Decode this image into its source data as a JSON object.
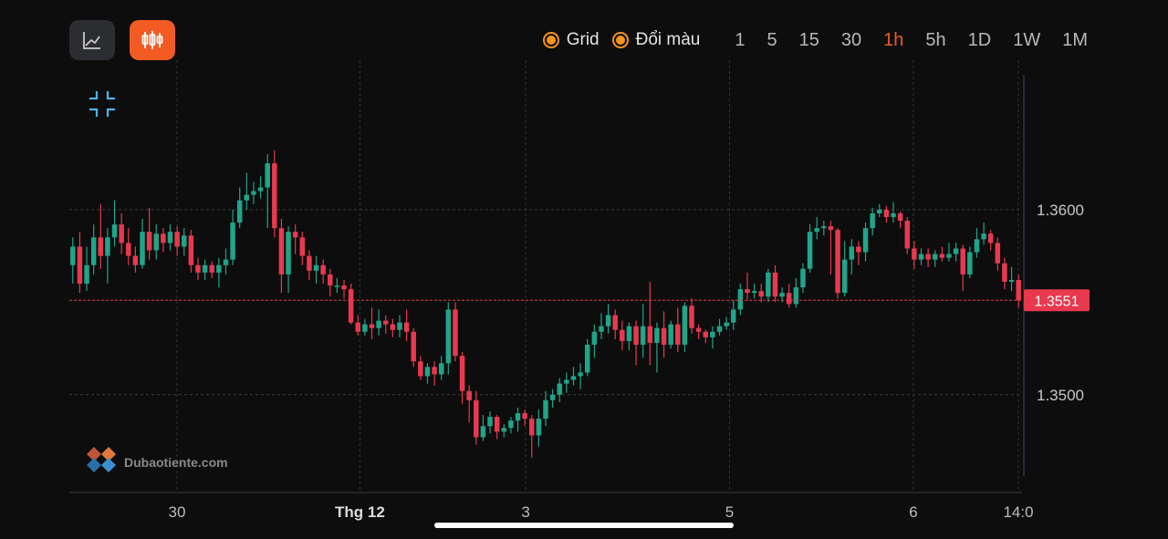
{
  "toolbar": {
    "chart_type_buttons": [
      {
        "icon": "line-chart-icon",
        "active": false
      },
      {
        "icon": "candlestick-icon",
        "active": true
      }
    ],
    "grid_label": "Grid",
    "color_label": "Đổi màu",
    "timeframes": [
      "1",
      "5",
      "15",
      "30",
      "1h",
      "5h",
      "1D",
      "1W",
      "1M"
    ],
    "active_timeframe": "1h",
    "accent_color": "#f25b22",
    "toggle_color": "#f7931e"
  },
  "watermark": {
    "text": "Dubaotiente.com"
  },
  "chart_data": {
    "type": "candlestick",
    "up_color": "#1fa58a",
    "down_color": "#e8394f",
    "grid": true,
    "ylim": [
      1.3457,
      1.3664
    ],
    "y_ticks": [
      "1.3600",
      "1.3500"
    ],
    "x_ticks": [
      "30",
      "Thg 12",
      "3",
      "5",
      "6",
      "14:0"
    ],
    "last_price": "1.3551",
    "candles": [
      [
        1.357,
        1.358,
        1.356,
        1.3585
      ],
      [
        1.358,
        1.356,
        1.3555,
        1.3588
      ],
      [
        1.356,
        1.357,
        1.3556,
        1.358
      ],
      [
        1.357,
        1.3585,
        1.3565,
        1.3592
      ],
      [
        1.3585,
        1.3575,
        1.3568,
        1.3603
      ],
      [
        1.3575,
        1.3585,
        1.356,
        1.359
      ],
      [
        1.3585,
        1.3592,
        1.358,
        1.3605
      ],
      [
        1.3592,
        1.3582,
        1.3576,
        1.3598
      ],
      [
        1.3582,
        1.3575,
        1.357,
        1.359
      ],
      [
        1.3575,
        1.357,
        1.3566,
        1.358
      ],
      [
        1.357,
        1.3588,
        1.3568,
        1.3595
      ],
      [
        1.3588,
        1.3578,
        1.3573,
        1.3601
      ],
      [
        1.3578,
        1.3587,
        1.3573,
        1.3592
      ],
      [
        1.3587,
        1.3582,
        1.3577,
        1.359
      ],
      [
        1.3582,
        1.3588,
        1.3578,
        1.3592
      ],
      [
        1.3588,
        1.358,
        1.3575,
        1.3591
      ],
      [
        1.358,
        1.3586,
        1.3575,
        1.359
      ],
      [
        1.3586,
        1.357,
        1.3566,
        1.3589
      ],
      [
        1.357,
        1.3566,
        1.3562,
        1.3574
      ],
      [
        1.3566,
        1.357,
        1.3562,
        1.3573
      ],
      [
        1.357,
        1.3566,
        1.3563,
        1.3572
      ],
      [
        1.3566,
        1.357,
        1.3558,
        1.3574
      ],
      [
        1.357,
        1.3573,
        1.3565,
        1.3579
      ],
      [
        1.3573,
        1.3593,
        1.357,
        1.36
      ],
      [
        1.3593,
        1.3605,
        1.359,
        1.3612
      ],
      [
        1.3605,
        1.3608,
        1.36,
        1.362
      ],
      [
        1.3608,
        1.361,
        1.3603,
        1.3615
      ],
      [
        1.361,
        1.3612,
        1.3606,
        1.3618
      ],
      [
        1.3612,
        1.3625,
        1.359,
        1.363
      ],
      [
        1.3625,
        1.359,
        1.3585,
        1.3632
      ],
      [
        1.359,
        1.3565,
        1.3555,
        1.3595
      ],
      [
        1.3565,
        1.3588,
        1.3555,
        1.3591
      ],
      [
        1.3588,
        1.3585,
        1.3576,
        1.3592
      ],
      [
        1.3585,
        1.3575,
        1.357,
        1.3588
      ],
      [
        1.3575,
        1.3567,
        1.3562,
        1.3578
      ],
      [
        1.3567,
        1.357,
        1.356,
        1.3575
      ],
      [
        1.357,
        1.3565,
        1.356,
        1.3573
      ],
      [
        1.3565,
        1.3559,
        1.3553,
        1.3568
      ],
      [
        1.3559,
        1.3559,
        1.3555,
        1.3563
      ],
      [
        1.3559,
        1.3557,
        1.3552,
        1.3562
      ],
      [
        1.3557,
        1.3539,
        1.3538,
        1.356
      ],
      [
        1.3539,
        1.3534,
        1.3532,
        1.3543
      ],
      [
        1.3534,
        1.3538,
        1.3532,
        1.3541
      ],
      [
        1.3538,
        1.3536,
        1.353,
        1.3547
      ],
      [
        1.3536,
        1.354,
        1.3532,
        1.3546
      ],
      [
        1.354,
        1.3538,
        1.3533,
        1.3543
      ],
      [
        1.3538,
        1.3535,
        1.3531,
        1.3541
      ],
      [
        1.3535,
        1.3539,
        1.3531,
        1.3543
      ],
      [
        1.3539,
        1.3534,
        1.3529,
        1.3546
      ],
      [
        1.3534,
        1.3518,
        1.3515,
        1.3536
      ],
      [
        1.3518,
        1.351,
        1.3508,
        1.3521
      ],
      [
        1.351,
        1.3515,
        1.3506,
        1.3517
      ],
      [
        1.3515,
        1.3511,
        1.3505,
        1.3518
      ],
      [
        1.3511,
        1.3517,
        1.3508,
        1.3521
      ],
      [
        1.3517,
        1.3546,
        1.3511,
        1.355
      ],
      [
        1.3546,
        1.3521,
        1.3518,
        1.355
      ],
      [
        1.3521,
        1.3502,
        1.3495,
        1.3523
      ],
      [
        1.3502,
        1.3497,
        1.3485,
        1.3505
      ],
      [
        1.3497,
        1.3477,
        1.3473,
        1.3502
      ],
      [
        1.3477,
        1.3483,
        1.3475,
        1.3489
      ],
      [
        1.3483,
        1.3488,
        1.3479,
        1.3491
      ],
      [
        1.3488,
        1.348,
        1.3476,
        1.3489
      ],
      [
        1.348,
        1.3482,
        1.3477,
        1.3484
      ],
      [
        1.3482,
        1.3486,
        1.3479,
        1.3488
      ],
      [
        1.3486,
        1.349,
        1.348,
        1.3493
      ],
      [
        1.349,
        1.3487,
        1.3483,
        1.3492
      ],
      [
        1.3487,
        1.3478,
        1.3466,
        1.3489
      ],
      [
        1.3478,
        1.3487,
        1.3472,
        1.3492
      ],
      [
        1.3487,
        1.3497,
        1.3483,
        1.3502
      ],
      [
        1.3497,
        1.35,
        1.3493,
        1.3503
      ],
      [
        1.35,
        1.3506,
        1.3496,
        1.3509
      ],
      [
        1.3506,
        1.3508,
        1.3501,
        1.3512
      ],
      [
        1.3508,
        1.351,
        1.3505,
        1.3515
      ],
      [
        1.351,
        1.3512,
        1.3503,
        1.3517
      ],
      [
        1.3512,
        1.3527,
        1.351,
        1.353
      ],
      [
        1.3527,
        1.3534,
        1.352,
        1.3538
      ],
      [
        1.3534,
        1.3537,
        1.353,
        1.3544
      ],
      [
        1.3537,
        1.3543,
        1.3533,
        1.3549
      ],
      [
        1.3543,
        1.3535,
        1.353,
        1.3546
      ],
      [
        1.3535,
        1.3529,
        1.3524,
        1.354
      ],
      [
        1.3529,
        1.3537,
        1.3524,
        1.3539
      ],
      [
        1.3537,
        1.3527,
        1.3516,
        1.354
      ],
      [
        1.3527,
        1.3537,
        1.352,
        1.3549
      ],
      [
        1.3537,
        1.3528,
        1.3516,
        1.3561
      ],
      [
        1.3528,
        1.3536,
        1.3512,
        1.3539
      ],
      [
        1.3536,
        1.3527,
        1.352,
        1.3545
      ],
      [
        1.3527,
        1.3538,
        1.3525,
        1.354
      ],
      [
        1.3538,
        1.3527,
        1.3523,
        1.3547
      ],
      [
        1.3527,
        1.3548,
        1.3523,
        1.355
      ],
      [
        1.3548,
        1.3536,
        1.3533,
        1.3552
      ],
      [
        1.3536,
        1.3534,
        1.353,
        1.3538
      ],
      [
        1.3534,
        1.3531,
        1.3528,
        1.3535
      ],
      [
        1.3531,
        1.3534,
        1.3525,
        1.3537
      ],
      [
        1.3534,
        1.3537,
        1.3532,
        1.3541
      ],
      [
        1.3537,
        1.3539,
        1.3535,
        1.3542
      ],
      [
        1.3539,
        1.3546,
        1.3535,
        1.3551
      ],
      [
        1.3546,
        1.3557,
        1.3543,
        1.356
      ],
      [
        1.3557,
        1.3555,
        1.3551,
        1.3566
      ],
      [
        1.3555,
        1.3556,
        1.3552,
        1.356
      ],
      [
        1.3556,
        1.3553,
        1.355,
        1.356
      ],
      [
        1.3553,
        1.3566,
        1.355,
        1.3568
      ],
      [
        1.3566,
        1.3553,
        1.355,
        1.357
      ],
      [
        1.3553,
        1.3555,
        1.355,
        1.3558
      ],
      [
        1.3555,
        1.3549,
        1.3547,
        1.356
      ],
      [
        1.3549,
        1.3558,
        1.3547,
        1.3563
      ],
      [
        1.3558,
        1.3568,
        1.3555,
        1.3571
      ],
      [
        1.3568,
        1.3588,
        1.3566,
        1.3592
      ],
      [
        1.3588,
        1.359,
        1.3584,
        1.3596
      ],
      [
        1.359,
        1.3591,
        1.3586,
        1.3594
      ],
      [
        1.3591,
        1.3589,
        1.3565,
        1.3594
      ],
      [
        1.3589,
        1.3555,
        1.3552,
        1.359
      ],
      [
        1.3555,
        1.3573,
        1.3553,
        1.3583
      ],
      [
        1.3573,
        1.358,
        1.3565,
        1.3584
      ],
      [
        1.358,
        1.3577,
        1.357,
        1.3583
      ],
      [
        1.3577,
        1.359,
        1.3572,
        1.3593
      ],
      [
        1.359,
        1.3598,
        1.3586,
        1.3601
      ],
      [
        1.3598,
        1.36,
        1.3596,
        1.3603
      ],
      [
        1.36,
        1.3596,
        1.3593,
        1.3602
      ],
      [
        1.3596,
        1.3598,
        1.3593,
        1.3604
      ],
      [
        1.3598,
        1.3594,
        1.359,
        1.3599
      ],
      [
        1.3594,
        1.3579,
        1.3576,
        1.3596
      ],
      [
        1.3579,
        1.3573,
        1.3568,
        1.3583
      ],
      [
        1.3573,
        1.3576,
        1.357,
        1.3579
      ],
      [
        1.3576,
        1.3573,
        1.3569,
        1.3579
      ],
      [
        1.3573,
        1.3576,
        1.3569,
        1.3578
      ],
      [
        1.3576,
        1.3574,
        1.3572,
        1.358
      ],
      [
        1.3574,
        1.3576,
        1.3572,
        1.3582
      ],
      [
        1.3576,
        1.3579,
        1.3572,
        1.3582
      ],
      [
        1.3579,
        1.3565,
        1.3556,
        1.3581
      ],
      [
        1.3565,
        1.3577,
        1.3563,
        1.358
      ],
      [
        1.3577,
        1.3584,
        1.3574,
        1.359
      ],
      [
        1.3584,
        1.3587,
        1.3581,
        1.3593
      ],
      [
        1.3587,
        1.3582,
        1.3578,
        1.3589
      ],
      [
        1.3582,
        1.3571,
        1.3567,
        1.3585
      ],
      [
        1.3571,
        1.3561,
        1.3557,
        1.3574
      ],
      [
        1.3561,
        1.3562,
        1.3556,
        1.3569
      ],
      [
        1.3562,
        1.3551,
        1.3547,
        1.3565
      ]
    ]
  }
}
